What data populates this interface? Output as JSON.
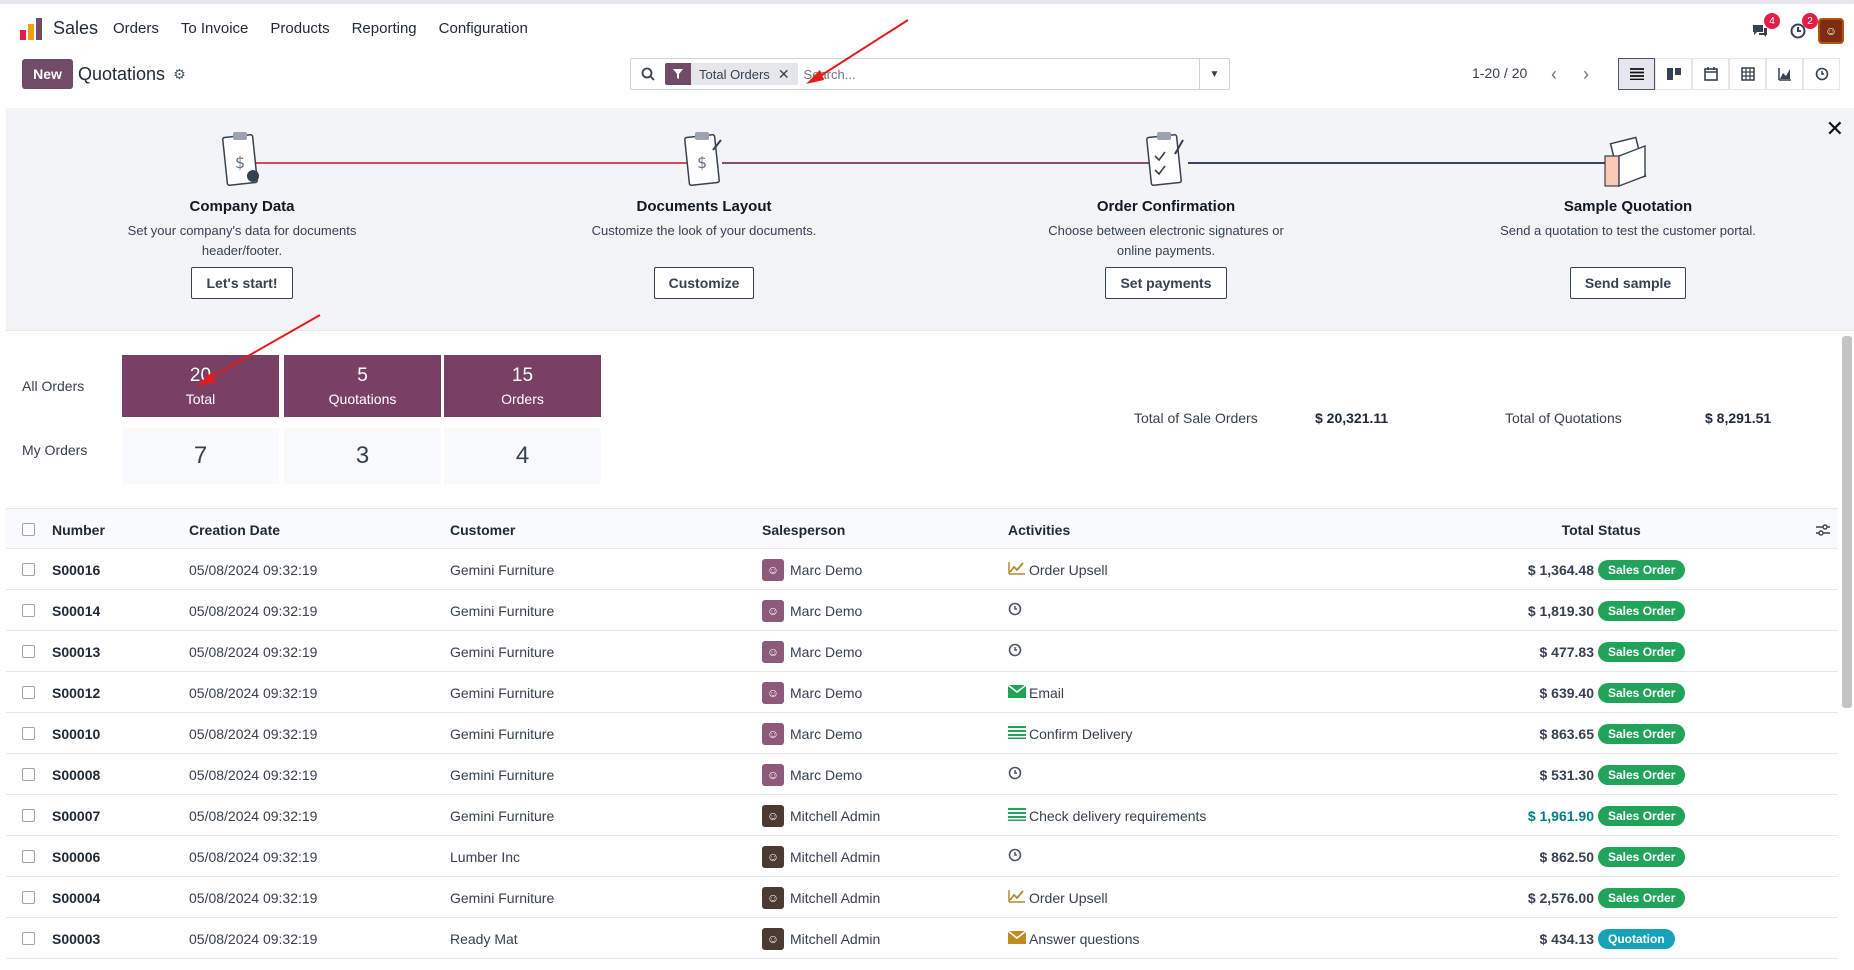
{
  "app": {
    "name": "Sales",
    "menu": [
      "Orders",
      "To Invoice",
      "Products",
      "Reporting",
      "Configuration"
    ],
    "messages_badge": "4",
    "activities_badge": "2"
  },
  "control": {
    "new_label": "New",
    "title": "Quotations",
    "facet_label": "Total Orders",
    "search_placeholder": "Search...",
    "pager": "1-20 / 20"
  },
  "onboarding": {
    "steps": [
      {
        "title": "Company Data",
        "desc": "Set your company's data for documents header/footer.",
        "button": "Let's start!"
      },
      {
        "title": "Documents Layout",
        "desc": "Customize the look of your documents.",
        "button": "Customize"
      },
      {
        "title": "Order Confirmation",
        "desc": "Choose between electronic signatures or online payments.",
        "button": "Set payments"
      },
      {
        "title": "Sample Quotation",
        "desc": "Send a quotation to test the customer portal.",
        "button": "Send sample"
      }
    ]
  },
  "dashboard": {
    "all_orders_label": "All Orders",
    "my_orders_label": "My Orders",
    "tiles": [
      {
        "value": "20",
        "label": "Total",
        "mine": "7"
      },
      {
        "value": "5",
        "label": "Quotations",
        "mine": "3"
      },
      {
        "value": "15",
        "label": "Orders",
        "mine": "4"
      }
    ],
    "total_sale_label": "Total of Sale Orders",
    "total_sale_value": "$ 20,321.11",
    "total_quot_label": "Total of Quotations",
    "total_quot_value": "$ 8,291.51"
  },
  "table": {
    "headers": {
      "number": "Number",
      "date": "Creation Date",
      "customer": "Customer",
      "salesperson": "Salesperson",
      "activities": "Activities",
      "total": "Total",
      "status": "Status"
    },
    "rows": [
      {
        "number": "S00016",
        "date": "05/08/2024 09:32:19",
        "customer": "Gemini Furniture",
        "salesperson": "Marc Demo",
        "activity": "Order Upsell",
        "activity_icon": "upsell-icon",
        "total": "$ 1,364.48",
        "status": "Sales Order"
      },
      {
        "number": "S00014",
        "date": "05/08/2024 09:32:19",
        "customer": "Gemini Furniture",
        "salesperson": "Marc Demo",
        "activity": "",
        "activity_icon": "clock-icon",
        "total": "$ 1,819.30",
        "status": "Sales Order"
      },
      {
        "number": "S00013",
        "date": "05/08/2024 09:32:19",
        "customer": "Gemini Furniture",
        "salesperson": "Marc Demo",
        "activity": "",
        "activity_icon": "clock-icon",
        "total": "$ 477.83",
        "status": "Sales Order"
      },
      {
        "number": "S00012",
        "date": "05/08/2024 09:32:19",
        "customer": "Gemini Furniture",
        "salesperson": "Marc Demo",
        "activity": "Email",
        "activity_icon": "email-icon",
        "total": "$ 639.40",
        "status": "Sales Order"
      },
      {
        "number": "S00010",
        "date": "05/08/2024 09:32:19",
        "customer": "Gemini Furniture",
        "salesperson": "Marc Demo",
        "activity": "Confirm Delivery",
        "activity_icon": "todo-icon",
        "total": "$ 863.65",
        "status": "Sales Order"
      },
      {
        "number": "S00008",
        "date": "05/08/2024 09:32:19",
        "customer": "Gemini Furniture",
        "salesperson": "Marc Demo",
        "activity": "",
        "activity_icon": "clock-icon",
        "total": "$ 531.30",
        "status": "Sales Order"
      },
      {
        "number": "S00007",
        "date": "05/08/2024 09:32:19",
        "customer": "Gemini Furniture",
        "salesperson": "Mitchell Admin",
        "activity": "Check delivery requirements",
        "activity_icon": "todo-icon",
        "total": "$ 1,961.90",
        "status": "Sales Order"
      },
      {
        "number": "S00006",
        "date": "05/08/2024 09:32:19",
        "customer": "Lumber Inc",
        "salesperson": "Mitchell Admin",
        "activity": "",
        "activity_icon": "clock-icon",
        "total": "$ 862.50",
        "status": "Sales Order"
      },
      {
        "number": "S00004",
        "date": "05/08/2024 09:32:19",
        "customer": "Gemini Furniture",
        "salesperson": "Mitchell Admin",
        "activity": "Order Upsell",
        "activity_icon": "upsell-icon",
        "total": "$ 2,576.00",
        "status": "Sales Order"
      },
      {
        "number": "S00003",
        "date": "05/08/2024 09:32:19",
        "customer": "Ready Mat",
        "salesperson": "Mitchell Admin",
        "activity": "Answer questions",
        "activity_icon": "email-icon",
        "total": "$ 434.13",
        "status": "Quotation"
      }
    ]
  },
  "colors": {
    "brand": "#714b67",
    "tile": "#7a3f65",
    "sales_order_badge": "#22a35a",
    "quotation_badge": "#17a2b8",
    "annotation_arrow": "#e11d1d"
  }
}
